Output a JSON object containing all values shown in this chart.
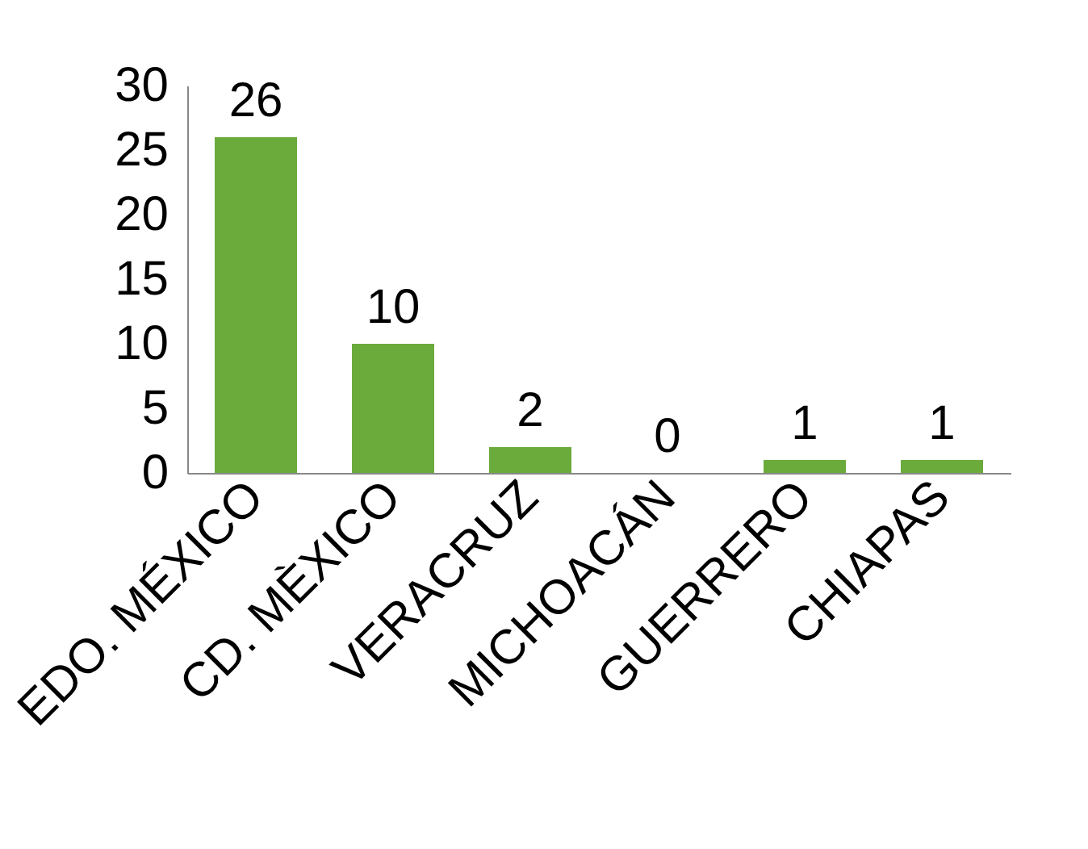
{
  "chart_data": {
    "type": "bar",
    "categories": [
      "EDO. MÉXICO",
      "CD. MÈXICO",
      "VERACRUZ",
      "MICHOACÁN",
      "GUERRERO",
      "CHIAPAS"
    ],
    "values": [
      26,
      10,
      2,
      0,
      1,
      1
    ],
    "color": "#6aab3c",
    "ylim": [
      0,
      30
    ],
    "yticks": [
      0,
      5,
      10,
      15,
      20,
      25,
      30
    ],
    "data_labels": true
  }
}
